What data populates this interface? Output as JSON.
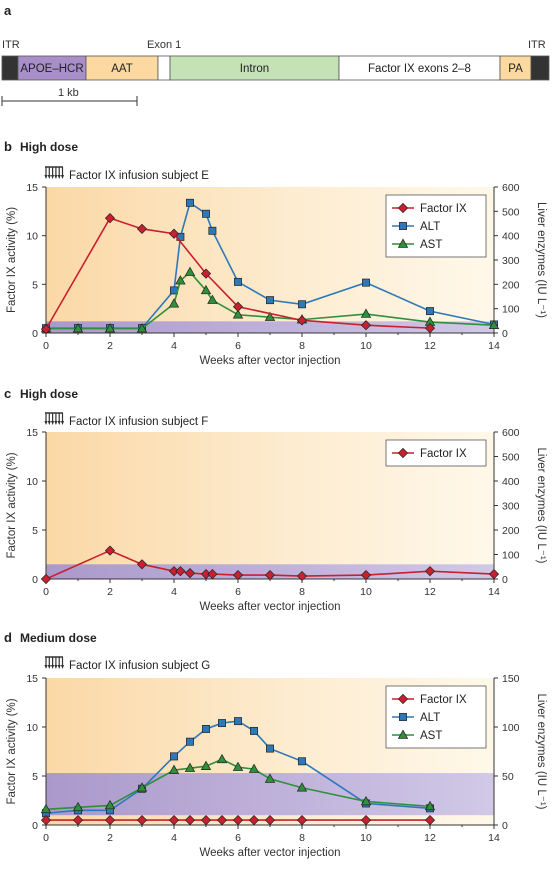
{
  "panel_a": {
    "letter": "a",
    "itr_left": "ITR",
    "itr_right": "ITR",
    "exon1": "Exon 1",
    "scale": "1 kb",
    "segments": [
      {
        "label": "",
        "color": "#333333"
      },
      {
        "label": "APOE–HCR",
        "color": "#a98fc9"
      },
      {
        "label": "AAT",
        "color": "#fbd9a0"
      },
      {
        "label": "",
        "color": "#ffffff"
      },
      {
        "label": "Intron",
        "color": "#c5e2b6"
      },
      {
        "label": "Factor IX exons 2–8",
        "color": "#ffffff"
      },
      {
        "label": "PA",
        "color": "#fbd9a0"
      },
      {
        "label": "",
        "color": "#333333"
      }
    ]
  },
  "colors": {
    "factor_ix": "#c8202f",
    "alt": "#2f78b8",
    "ast": "#2f8f3a",
    "normal_band": "#a79ad3"
  },
  "chart_data": [
    {
      "type": "line",
      "letter": "b",
      "title": "High dose",
      "subject": "Factor IX infusion subject E",
      "xlabel": "Weeks after vector injection",
      "ylabel_left": "Factor IX activity (%)",
      "ylabel_right": "Liver enzymes (IU L⁻¹)",
      "xlim": [
        0,
        14
      ],
      "ylim_left": [
        0,
        15
      ],
      "ylim_right": [
        0,
        600
      ],
      "x_ticks": [
        "0",
        "2",
        "4",
        "6",
        "8",
        "10",
        "12",
        "14"
      ],
      "y_ticks_left": [
        "0",
        "5",
        "10",
        "15"
      ],
      "y_ticks_right": [
        "0",
        "100",
        "200",
        "300",
        "400",
        "500",
        "600"
      ],
      "normal_band": [
        0,
        1.2
      ],
      "legend": [
        "Factor IX",
        "ALT",
        "AST"
      ],
      "series": [
        {
          "name": "Factor IX",
          "axis": "left",
          "marker": "diamond",
          "x": [
            0,
            2,
            3,
            4,
            5,
            6,
            8,
            10,
            12
          ],
          "y": [
            0.4,
            11.8,
            10.7,
            10.2,
            6.1,
            2.7,
            1.3,
            0.8,
            0.5
          ]
        },
        {
          "name": "ALT",
          "axis": "right",
          "marker": "square",
          "x": [
            0,
            1,
            2,
            3,
            4,
            4.2,
            4.5,
            5,
            5.2,
            6,
            7,
            8,
            10,
            12,
            14
          ],
          "y": [
            20,
            20,
            20,
            20,
            175,
            395,
            535,
            490,
            420,
            210,
            135,
            118,
            207,
            90,
            35
          ]
        },
        {
          "name": "AST",
          "axis": "right",
          "marker": "triangle",
          "x": [
            0,
            1,
            2,
            3,
            4,
            4.2,
            4.5,
            5,
            5.2,
            6,
            7,
            8,
            10,
            12,
            14
          ],
          "y": [
            18,
            18,
            18,
            18,
            120,
            215,
            250,
            175,
            135,
            75,
            65,
            55,
            78,
            45,
            32
          ]
        }
      ]
    },
    {
      "type": "line",
      "letter": "c",
      "title": "High dose",
      "subject": "Factor IX infusion subject F",
      "xlabel": "Weeks after vector injection",
      "ylabel_left": "Factor IX activity (%)",
      "ylabel_right": "Liver enzymes (IU L⁻¹)",
      "xlim": [
        0,
        14
      ],
      "ylim_left": [
        0,
        15
      ],
      "ylim_right": [
        0,
        600
      ],
      "x_ticks": [
        "0",
        "2",
        "4",
        "6",
        "8",
        "10",
        "12",
        "14"
      ],
      "y_ticks_left": [
        "0",
        "5",
        "10",
        "15"
      ],
      "y_ticks_right": [
        "0",
        "100",
        "200",
        "300",
        "400",
        "500",
        "600"
      ],
      "normal_band": [
        0,
        1.5
      ],
      "legend": [
        "Factor IX"
      ],
      "series": [
        {
          "name": "Factor IX",
          "axis": "left",
          "marker": "diamond",
          "x": [
            0,
            2,
            3,
            4,
            4.2,
            4.5,
            5,
            5.2,
            6,
            7,
            8,
            10,
            12,
            14
          ],
          "y": [
            0,
            2.9,
            1.5,
            0.8,
            0.8,
            0.6,
            0.5,
            0.5,
            0.4,
            0.4,
            0.3,
            0.4,
            0.8,
            0.5
          ]
        }
      ]
    },
    {
      "type": "line",
      "letter": "d",
      "title": "Medium dose",
      "subject": "Factor IX infusion subject G",
      "xlabel": "Weeks after vector injection",
      "ylabel_left": "Factor IX activity (%)",
      "ylabel_right": "Liver enzymes (IU L⁻¹)",
      "xlim": [
        0,
        14
      ],
      "ylim_left": [
        0,
        15
      ],
      "ylim_right": [
        0,
        150
      ],
      "x_ticks": [
        "0",
        "2",
        "4",
        "6",
        "8",
        "10",
        "12",
        "14"
      ],
      "y_ticks_left": [
        "0",
        "5",
        "10",
        "15"
      ],
      "y_ticks_right": [
        "0",
        "50",
        "100",
        "150"
      ],
      "normal_band": [
        1,
        5.3
      ],
      "legend": [
        "Factor IX",
        "ALT",
        "AST"
      ],
      "series": [
        {
          "name": "Factor IX",
          "axis": "left",
          "marker": "diamond",
          "x": [
            0,
            1,
            2,
            3,
            4,
            4.5,
            5,
            5.5,
            6,
            6.5,
            7,
            8,
            10,
            12
          ],
          "y": [
            0.5,
            0.5,
            0.5,
            0.5,
            0.5,
            0.5,
            0.5,
            0.5,
            0.5,
            0.5,
            0.5,
            0.5,
            0.5,
            0.5
          ]
        },
        {
          "name": "ALT",
          "axis": "right",
          "marker": "square",
          "x": [
            0,
            1,
            2,
            3,
            4,
            4.5,
            5,
            5.5,
            6,
            6.5,
            7,
            8,
            10,
            12
          ],
          "y": [
            12,
            15,
            15,
            37,
            70,
            85,
            98,
            104,
            106,
            96,
            78,
            65,
            22,
            17
          ]
        },
        {
          "name": "AST",
          "axis": "right",
          "marker": "triangle",
          "x": [
            0,
            1,
            2,
            3,
            4,
            4.5,
            5,
            5.5,
            6,
            6.5,
            7,
            8,
            10,
            12
          ],
          "y": [
            16,
            18,
            20,
            38,
            56,
            58,
            60,
            67,
            59,
            57,
            47,
            38,
            24,
            19
          ]
        }
      ]
    }
  ]
}
